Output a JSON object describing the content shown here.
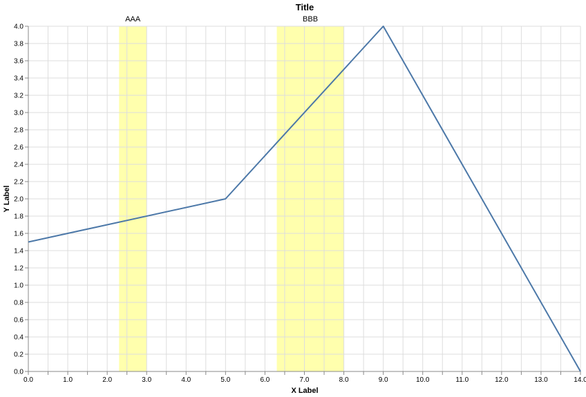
{
  "chart_data": {
    "type": "line",
    "title": "Title",
    "xlabel": "X Label",
    "ylabel": "Y Label",
    "xlim": [
      0,
      14
    ],
    "ylim": [
      0,
      4
    ],
    "xticks": [
      "0.0",
      "0.5",
      "1.0",
      "1.5",
      "2.0",
      "2.5",
      "3.0",
      "3.5",
      "4.0",
      "4.5",
      "5.0",
      "5.5",
      "6.0",
      "6.5",
      "7.0",
      "7.5",
      "8.0",
      "8.5",
      "9.0",
      "9.5",
      "10.0",
      "10.5",
      "11.0",
      "11.5",
      "12.0",
      "12.5",
      "13.0",
      "13.5",
      "14.0"
    ],
    "yticks": [
      "0.0",
      "0.2",
      "0.4",
      "0.6",
      "0.8",
      "1.0",
      "1.2",
      "1.4",
      "1.6",
      "1.8",
      "2.0",
      "2.2",
      "2.4",
      "2.6",
      "2.8",
      "3.0",
      "3.2",
      "3.4",
      "3.6",
      "3.8",
      "4.0"
    ],
    "grid": true,
    "series": [
      {
        "color": "#4c78a8",
        "x": [
          0,
          5,
          9,
          14
        ],
        "y": [
          1.5,
          2.0,
          4.0,
          0.0
        ]
      }
    ],
    "bands": [
      {
        "label": "AAA",
        "start": 2.3,
        "end": 3.0,
        "color": "#ffff99"
      },
      {
        "label": "BBB",
        "start": 6.3,
        "end": 8.0,
        "color": "#ffff99"
      }
    ]
  }
}
